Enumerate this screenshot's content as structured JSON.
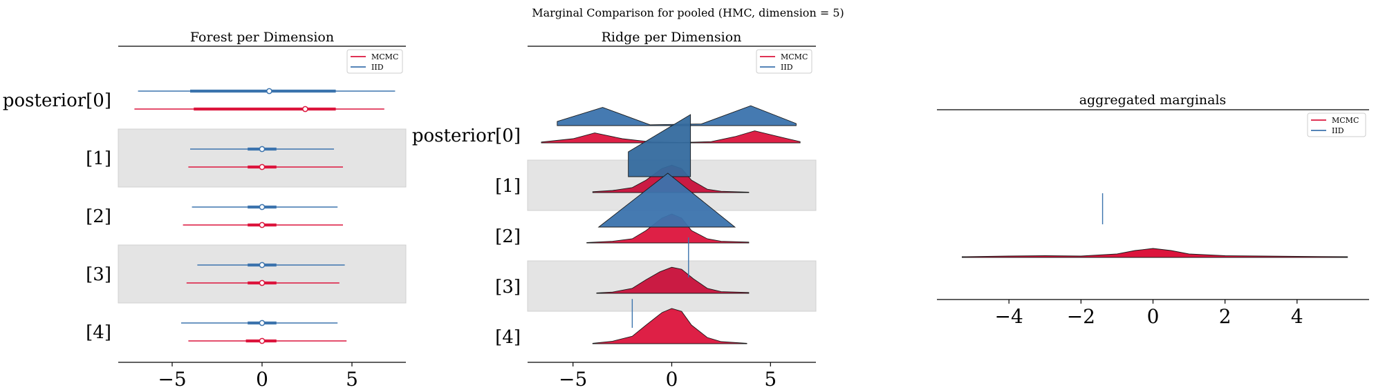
{
  "suptitle": "Marginal Comparison for pooled (HMC, dimension = 5)",
  "colors": {
    "mcmc": "#dc143c",
    "iid": "#3b73ad",
    "band": "#e4e4e4",
    "mcmc_dark": "#c8103a",
    "iid_dark": "#346a9e"
  },
  "legend": {
    "mcmc": "MCMC",
    "iid": "IID"
  },
  "chart_data": [
    {
      "type": "forest",
      "title": "Forest per Dimension",
      "row_labels": [
        "posterior[0]",
        "[1]",
        "[2]",
        "[3]",
        "[4]"
      ],
      "xlim": [
        -8,
        8
      ],
      "xticks": [
        -5,
        0,
        5
      ],
      "xtick_labels": [
        "−5",
        "0",
        "5"
      ],
      "series": [
        {
          "name": "IID",
          "color": "iid",
          "rows": [
            {
              "low": -6.9,
              "q1": -4.0,
              "mid": 0.4,
              "q3": 4.1,
              "high": 7.4
            },
            {
              "low": -4.0,
              "q1": -0.8,
              "mid": 0.0,
              "q3": 0.8,
              "high": 4.0
            },
            {
              "low": -3.9,
              "q1": -0.8,
              "mid": 0.0,
              "q3": 0.8,
              "high": 4.2
            },
            {
              "low": -3.6,
              "q1": -0.8,
              "mid": 0.0,
              "q3": 0.8,
              "high": 4.6
            },
            {
              "low": -4.5,
              "q1": -0.8,
              "mid": 0.0,
              "q3": 0.8,
              "high": 4.2
            }
          ]
        },
        {
          "name": "MCMC",
          "color": "mcmc",
          "rows": [
            {
              "low": -7.1,
              "q1": -3.8,
              "mid": 2.4,
              "q3": 4.1,
              "high": 6.8
            },
            {
              "low": -4.1,
              "q1": -0.8,
              "mid": 0.0,
              "q3": 0.8,
              "high": 4.5
            },
            {
              "low": -4.4,
              "q1": -0.8,
              "mid": 0.0,
              "q3": 0.8,
              "high": 4.5
            },
            {
              "low": -4.2,
              "q1": -0.8,
              "mid": 0.0,
              "q3": 0.8,
              "high": 4.3
            },
            {
              "low": -4.1,
              "q1": -0.9,
              "mid": 0.0,
              "q3": 0.8,
              "high": 4.7
            }
          ]
        }
      ]
    },
    {
      "type": "ridge",
      "title": "Ridge per Dimension",
      "row_labels": [
        "posterior[0]",
        "[1]",
        "[2]",
        "[3]",
        "[4]"
      ],
      "xlim": [
        -7.3,
        7.3
      ],
      "xticks": [
        -5,
        0,
        5
      ],
      "xtick_labels": [
        "−5",
        "0",
        "5"
      ],
      "series": [
        {
          "name": "IID",
          "color": "iid",
          "rows": [
            {
              "x": [
                -5.8,
                -3.5,
                -1.1,
                1.5,
                4.0,
                6.3
              ],
              "y": [
                0.1,
                0.44,
                0.02,
                0.04,
                0.48,
                0.05
              ]
            },
            {
              "x": [
                -2.2,
                -2.2,
                0.95,
                0.95
              ],
              "y": [
                0.0,
                0.6,
                1.5,
                0.0
              ]
            },
            {
              "x": [
                -3.7,
                -0.2,
                3.2
              ],
              "y": [
                0.0,
                1.3,
                0.0
              ]
            },
            {
              "x": [
                0.85,
                0.85
              ],
              "y": [
                0.0,
                1.0
              ]
            },
            {
              "x": [
                -2.0,
                -2.0
              ],
              "y": [
                0.0,
                0.72
              ]
            }
          ]
        },
        {
          "name": "MCMC",
          "color": "mcmc",
          "rows": [
            {
              "x": [
                -6.6,
                -5.0,
                -3.9,
                -2.5,
                -1.0,
                0.5,
                2.0,
                3.2,
                4.2,
                5.5,
                6.5
              ],
              "y": [
                0.02,
                0.1,
                0.24,
                0.1,
                0.02,
                0.01,
                0.03,
                0.15,
                0.29,
                0.14,
                0.03
              ]
            },
            {
              "x": [
                -4.0,
                -3.0,
                -2.0,
                -1.3,
                -0.5,
                0.0,
                0.5,
                1.0,
                1.8,
                2.5,
                3.9
              ],
              "y": [
                0.02,
                0.05,
                0.12,
                0.3,
                0.58,
                0.66,
                0.58,
                0.3,
                0.08,
                0.03,
                0.01
              ]
            },
            {
              "x": [
                -4.3,
                -3.0,
                -2.0,
                -1.3,
                -0.5,
                0.0,
                0.5,
                1.0,
                1.8,
                2.5,
                3.9
              ],
              "y": [
                0.01,
                0.04,
                0.1,
                0.3,
                0.6,
                0.7,
                0.6,
                0.3,
                0.1,
                0.04,
                0.02
              ]
            },
            {
              "x": [
                -3.8,
                -3.0,
                -2.0,
                -1.3,
                -0.6,
                0.0,
                0.5,
                1.1,
                1.8,
                2.5,
                3.9
              ],
              "y": [
                0.01,
                0.03,
                0.12,
                0.33,
                0.52,
                0.63,
                0.58,
                0.35,
                0.12,
                0.04,
                0.02
              ]
            },
            {
              "x": [
                -4.0,
                -3.0,
                -2.0,
                -1.3,
                -0.5,
                0.0,
                0.5,
                1.0,
                1.8,
                2.5,
                3.8
              ],
              "y": [
                0.01,
                0.06,
                0.18,
                0.45,
                0.75,
                0.85,
                0.78,
                0.45,
                0.15,
                0.05,
                0.01
              ]
            }
          ]
        }
      ]
    },
    {
      "type": "area",
      "title": "aggregated marginals",
      "xlim": [
        -6.0,
        6.0
      ],
      "xticks": [
        -4,
        -2,
        0,
        2,
        4
      ],
      "xtick_labels": [
        "−4",
        "−2",
        "0",
        "2",
        "4"
      ],
      "series": [
        {
          "name": "IID",
          "color": "iid",
          "x": [
            -1.4,
            -1.4
          ],
          "y": [
            0.0,
            1.0
          ]
        },
        {
          "name": "MCMC",
          "color": "mcmc",
          "x": [
            -5.3,
            -4.0,
            -3.0,
            -2.0,
            -1.0,
            -0.5,
            0.0,
            0.5,
            1.0,
            2.0,
            3.0,
            4.0,
            5.4
          ],
          "y": [
            0.01,
            0.02,
            0.025,
            0.02,
            0.05,
            0.1,
            0.13,
            0.1,
            0.05,
            0.025,
            0.02,
            0.015,
            0.01
          ]
        }
      ]
    }
  ]
}
